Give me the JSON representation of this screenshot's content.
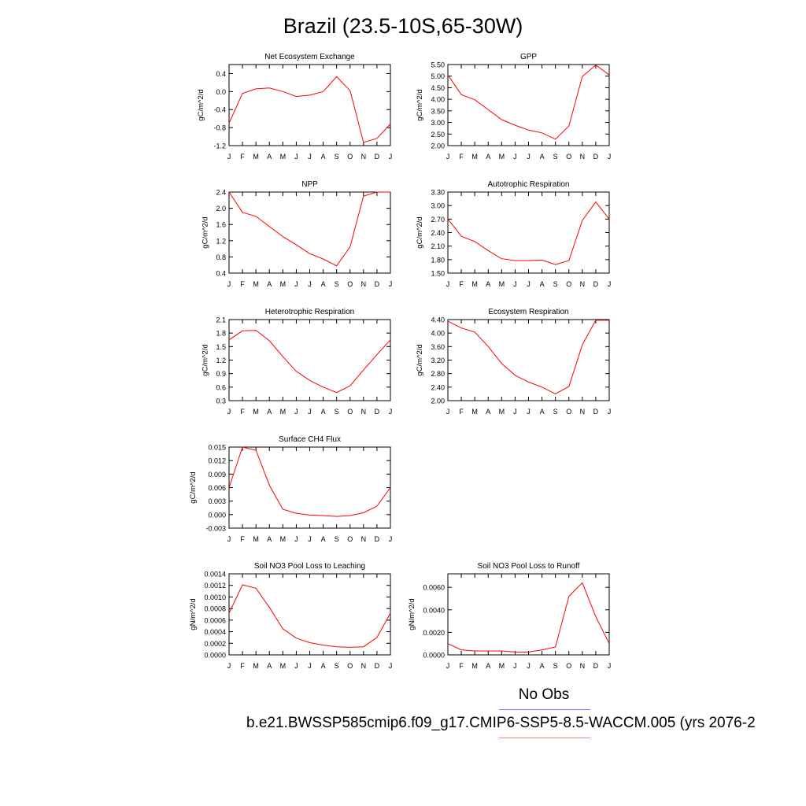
{
  "figure": {
    "title": "Brazil (23.5-10S,65-30W)",
    "legend": {
      "obs_label": "No Obs",
      "case_label": "b.e21.BWSSP585cmip6.f09_g17.CMIP6-SSP5-8.5-WACCM.005 (yrs 2076-2",
      "obs_color": "#7f7fff",
      "case_color": "#ff7f7f"
    },
    "line_color": "#ff0000"
  },
  "chart_data": [
    {
      "type": "line",
      "title": "Net Ecosystem Exchange",
      "ylabel": "gC/m^2/d",
      "categories": [
        "J",
        "F",
        "M",
        "A",
        "M",
        "J",
        "J",
        "A",
        "S",
        "O",
        "N",
        "D",
        "J"
      ],
      "ylim": [
        -1.2,
        0.6
      ],
      "yticks": [
        "0.4",
        "0.0",
        "-0.4",
        "-0.8",
        "-1.2"
      ],
      "values": [
        -0.7,
        -0.04,
        0.06,
        0.08,
        0.0,
        -0.11,
        -0.08,
        0.0,
        0.33,
        0.02,
        -1.13,
        -1.04,
        -0.72
      ]
    },
    {
      "type": "line",
      "title": "GPP",
      "ylabel": "gC/m^2/d",
      "categories": [
        "J",
        "F",
        "M",
        "A",
        "M",
        "J",
        "J",
        "A",
        "S",
        "O",
        "N",
        "D",
        "J"
      ],
      "ylim": [
        2.0,
        5.5
      ],
      "yticks": [
        "5.50",
        "5.00",
        "4.50",
        "4.00",
        "3.50",
        "3.00",
        "2.50",
        "2.00"
      ],
      "values": [
        5.05,
        4.2,
        3.98,
        3.55,
        3.12,
        2.88,
        2.67,
        2.55,
        2.28,
        2.85,
        4.98,
        5.48,
        5.05
      ]
    },
    {
      "type": "line",
      "title": "NPP",
      "ylabel": "gC/m^2/d",
      "categories": [
        "J",
        "F",
        "M",
        "A",
        "M",
        "J",
        "J",
        "A",
        "S",
        "O",
        "N",
        "D",
        "J"
      ],
      "ylim": [
        0.4,
        2.4
      ],
      "yticks": [
        "2.4",
        "2.0",
        "1.6",
        "1.2",
        "0.8",
        "0.4"
      ],
      "values": [
        2.4,
        1.9,
        1.8,
        1.55,
        1.3,
        1.1,
        0.88,
        0.75,
        0.58,
        1.05,
        2.3,
        2.4,
        2.4
      ]
    },
    {
      "type": "line",
      "title": "Autotrophic Respiration",
      "ylabel": "gC/m^2/d",
      "categories": [
        "J",
        "F",
        "M",
        "A",
        "M",
        "J",
        "J",
        "A",
        "S",
        "O",
        "N",
        "D",
        "J"
      ],
      "ylim": [
        1.5,
        3.3
      ],
      "yticks": [
        "3.30",
        "3.00",
        "2.70",
        "2.40",
        "2.10",
        "1.80",
        "1.50"
      ],
      "values": [
        2.7,
        2.32,
        2.2,
        2.0,
        1.82,
        1.78,
        1.78,
        1.79,
        1.69,
        1.78,
        2.67,
        3.08,
        2.7
      ]
    },
    {
      "type": "line",
      "title": "Heterotrophic Respiration",
      "ylabel": "gC/m^2/d",
      "categories": [
        "J",
        "F",
        "M",
        "A",
        "M",
        "J",
        "J",
        "A",
        "S",
        "O",
        "N",
        "D",
        "J"
      ],
      "ylim": [
        0.3,
        2.1
      ],
      "yticks": [
        "2.1",
        "1.8",
        "1.5",
        "1.2",
        "0.9",
        "0.6",
        "0.3"
      ],
      "values": [
        1.65,
        1.85,
        1.86,
        1.63,
        1.28,
        0.95,
        0.75,
        0.6,
        0.48,
        0.63,
        0.98,
        1.32,
        1.65
      ]
    },
    {
      "type": "line",
      "title": "Ecosystem Respiration",
      "ylabel": "gC/m^2/d",
      "categories": [
        "J",
        "F",
        "M",
        "A",
        "M",
        "J",
        "J",
        "A",
        "S",
        "O",
        "N",
        "D",
        "J"
      ],
      "ylim": [
        2.0,
        4.4
      ],
      "yticks": [
        "4.40",
        "4.00",
        "3.60",
        "3.20",
        "2.80",
        "2.40",
        "2.00"
      ],
      "values": [
        4.35,
        4.15,
        4.03,
        3.6,
        3.1,
        2.75,
        2.55,
        2.4,
        2.2,
        2.42,
        3.65,
        4.38,
        4.38
      ]
    },
    {
      "type": "line",
      "title": "Surface CH4 Flux",
      "ylabel": "gC/m^2/d",
      "categories": [
        "J",
        "F",
        "M",
        "A",
        "M",
        "J",
        "J",
        "A",
        "S",
        "O",
        "N",
        "D",
        "J"
      ],
      "ylim": [
        -0.003,
        0.015
      ],
      "yticks": [
        "0.015",
        "0.012",
        "0.009",
        "0.006",
        "0.003",
        "0.000",
        "-0.003"
      ],
      "values": [
        0.006,
        0.015,
        0.0143,
        0.0065,
        0.0012,
        0.0003,
        -0.0001,
        -0.0002,
        -0.0004,
        -0.0002,
        0.0004,
        0.0019,
        0.006
      ]
    },
    {
      "type": "line",
      "title": "Soil NO3 Pool Loss to Leaching",
      "ylabel": "gN/m^2/d",
      "categories": [
        "J",
        "F",
        "M",
        "A",
        "M",
        "J",
        "J",
        "A",
        "S",
        "O",
        "N",
        "D",
        "J"
      ],
      "ylim": [
        0.0,
        0.0014
      ],
      "yticks": [
        "0.0014",
        "0.0012",
        "0.0010",
        "0.0008",
        "0.0006",
        "0.0004",
        "0.0002",
        "0.0000"
      ],
      "values": [
        0.00072,
        0.00121,
        0.00115,
        0.00082,
        0.00045,
        0.00029,
        0.00021,
        0.00017,
        0.00014,
        0.00013,
        0.00014,
        0.0003,
        0.00072
      ]
    },
    {
      "type": "line",
      "title": "Soil NO3 Pool Loss to Runoff",
      "ylabel": "gN/m^2/d",
      "categories": [
        "J",
        "F",
        "M",
        "A",
        "M",
        "J",
        "J",
        "A",
        "S",
        "O",
        "N",
        "D",
        "J"
      ],
      "ylim": [
        0.0,
        0.0072
      ],
      "yticks": [
        "0.0060",
        "0.0040",
        "0.0020",
        "0.0000"
      ],
      "values": [
        0.001,
        0.00045,
        0.00035,
        0.00035,
        0.00035,
        0.00025,
        0.00025,
        0.00045,
        0.0007,
        0.0052,
        0.0064,
        0.0034,
        0.001
      ]
    }
  ]
}
